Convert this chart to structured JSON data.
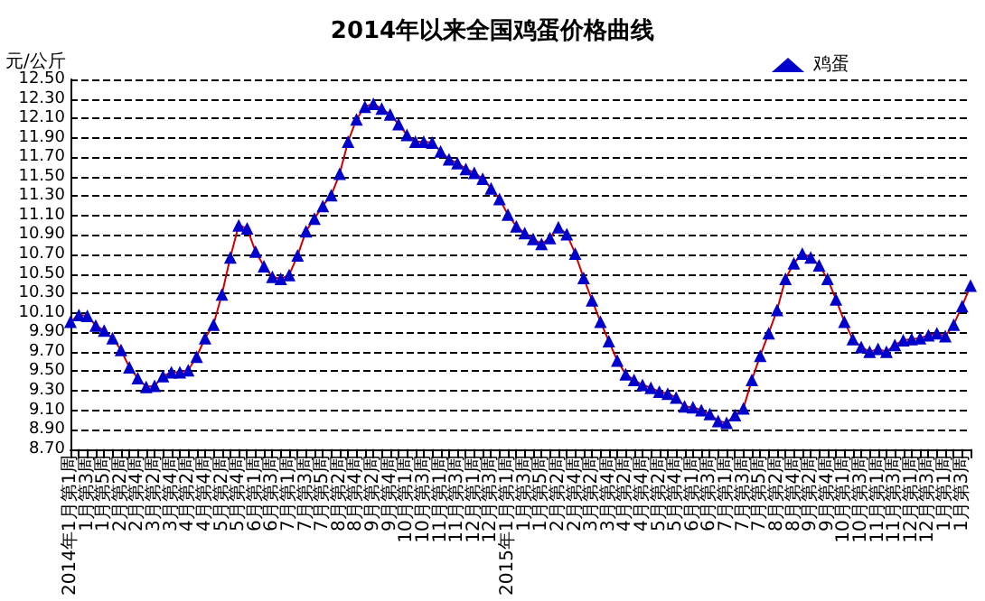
{
  "chart_data": {
    "type": "line",
    "title": "2014年以来全国鸡蛋价格曲线",
    "ylabel": "元/公斤",
    "categories": [
      "2014年1月第1周",
      null,
      "1月第3周",
      null,
      "1月第5周",
      null,
      "2月第2周",
      null,
      "2月第4周",
      null,
      "3月第2周",
      null,
      "3月第4周",
      null,
      "4月第2周",
      null,
      "4月第4周",
      null,
      "5月第2周",
      null,
      "5月第4周",
      null,
      "6月第1周",
      null,
      "6月第3周",
      null,
      "7月第1周",
      null,
      "7月第3周",
      null,
      "7月第5周",
      null,
      "8月第2周",
      null,
      "8月第4周",
      null,
      "9月第2周",
      null,
      "9月第4周",
      null,
      "10月第1周",
      null,
      "10月第3周",
      null,
      "11月第1周",
      null,
      "11月第3周",
      null,
      "12月第1周",
      null,
      "12月第3周",
      null,
      "2015年1月第1周",
      null,
      "1月第3周",
      null,
      "1月第5周",
      null,
      "2月第2周",
      null,
      "2月第4周",
      null,
      "3月第2周",
      null,
      "3月第4周",
      null,
      "4月第2周",
      null,
      "4月第4周",
      null,
      "5月第2周",
      null,
      "5月第4周",
      null,
      "6月第1周",
      null,
      "6月第3周",
      null,
      "7月第1周",
      null,
      "7月第3周",
      null,
      "7月第5周",
      null,
      "8月第2周",
      null,
      "8月第4周",
      null,
      "9月第2周",
      null,
      "9月第4周",
      null,
      "10月第1周",
      null,
      "10月第3周",
      null,
      "11月第1周",
      null,
      "11月第3周",
      null,
      "12月第1周",
      null,
      "12月第3周",
      null,
      "1月第1周",
      null,
      "1月第3周",
      null
    ],
    "series": [
      {
        "name": "鸡蛋",
        "color": "#0000cc",
        "values": [
          10.01,
          10.08,
          10.07,
          9.97,
          9.92,
          9.84,
          9.72,
          9.54,
          9.43,
          9.34,
          9.35,
          9.45,
          9.49,
          9.49,
          9.51,
          9.65,
          9.84,
          9.98,
          10.29,
          10.67,
          11.0,
          10.97,
          10.73,
          10.58,
          10.47,
          10.45,
          10.49,
          10.69,
          10.94,
          11.07,
          11.2,
          11.31,
          11.53,
          11.86,
          12.09,
          12.22,
          12.25,
          12.2,
          12.14,
          12.04,
          11.93,
          11.86,
          11.86,
          11.85,
          11.76,
          11.68,
          11.64,
          11.58,
          11.54,
          11.48,
          11.38,
          11.27,
          11.11,
          10.99,
          10.92,
          10.86,
          10.81,
          10.87,
          10.98,
          10.91,
          10.71,
          10.46,
          10.23,
          10.01,
          9.81,
          9.61,
          9.47,
          9.41,
          9.36,
          9.33,
          9.29,
          9.27,
          9.23,
          9.14,
          9.13,
          9.1,
          9.06,
          8.99,
          8.97,
          9.05,
          9.12,
          9.41,
          9.66,
          9.89,
          10.13,
          10.45,
          10.61,
          10.71,
          10.67,
          10.59,
          10.45,
          10.24,
          10.01,
          9.83,
          9.75,
          9.7,
          9.73,
          9.7,
          9.77,
          9.82,
          9.83,
          9.84,
          9.87,
          9.89,
          9.86,
          9.98,
          10.17,
          10.38
        ]
      }
    ],
    "ylim": [
      8.7,
      12.5
    ],
    "yticks": [
      {
        "value": 8.7,
        "label": "8.70"
      },
      {
        "value": 8.9,
        "label": "8.90"
      },
      {
        "value": 9.1,
        "label": "9.10"
      },
      {
        "value": 9.3,
        "label": "9.30"
      },
      {
        "value": 9.5,
        "label": "9.50"
      },
      {
        "value": 9.7,
        "label": "9.70"
      },
      {
        "value": 9.9,
        "label": "9.90"
      },
      {
        "value": 10.1,
        "label": "10.10"
      },
      {
        "value": 10.3,
        "label": "10.30"
      },
      {
        "value": 10.5,
        "label": "10.50"
      },
      {
        "value": 10.7,
        "label": "10.70"
      },
      {
        "value": 10.9,
        "label": "10.90"
      },
      {
        "value": 11.1,
        "label": "11.10"
      },
      {
        "value": 11.3,
        "label": "11.30"
      },
      {
        "value": 11.5,
        "label": "11.50"
      },
      {
        "value": 11.7,
        "label": "11.70"
      },
      {
        "value": 11.9,
        "label": "11.90"
      },
      {
        "value": 12.1,
        "label": "12.10"
      },
      {
        "value": 12.3,
        "label": "12.30"
      },
      {
        "value": 12.5,
        "label": "12.50"
      }
    ],
    "grid": "y",
    "legend": "top right",
    "marker": "triangle",
    "line_style": "solid"
  }
}
